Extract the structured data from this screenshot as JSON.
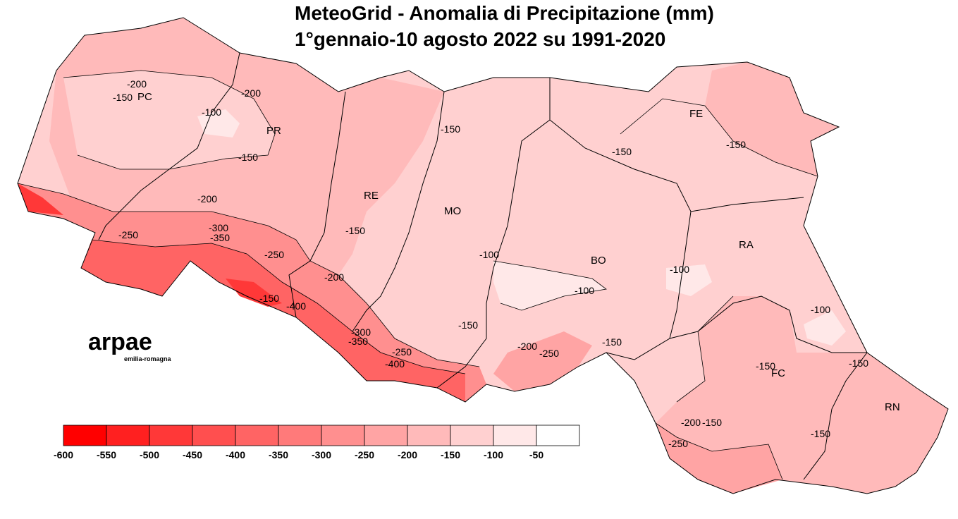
{
  "title": [
    "MeteoGrid - Anomalia di Precipitazione (mm)",
    "1°gennaio-10 agosto 2022 su 1991-2020"
  ],
  "provinces": [
    "PC",
    "PR",
    "RE",
    "MO",
    "BO",
    "FE",
    "RA",
    "FC",
    "RN"
  ],
  "contour_labels": [
    "-200",
    "-150",
    "-100",
    "-200",
    "-150",
    "-200",
    "-250",
    "-300",
    "-350",
    "-250",
    "-150",
    "-400",
    "-200",
    "-150",
    "-150",
    "-150",
    "-150",
    "-100",
    "-100",
    "-100",
    "-100",
    "-150",
    "-200",
    "-250",
    "-300",
    "-350",
    "-250",
    "-400",
    "-150",
    "-150",
    "-150",
    "-150",
    "-200",
    "-150",
    "-250"
  ],
  "logo": {
    "name": "arpae",
    "subtitle": "emilia-romagna"
  },
  "legend": {
    "ticks": [
      -600,
      -550,
      -500,
      -450,
      -400,
      -350,
      -300,
      -250,
      -200,
      -150,
      -100,
      -50
    ],
    "colors": [
      "#ff0000",
      "#ff2020",
      "#ff3838",
      "#ff4f4f",
      "#ff6464",
      "#ff7a7a",
      "#ff8f8f",
      "#ffa4a4",
      "#ffbaba",
      "#ffd0d0",
      "#ffe8e8",
      "#ffffff"
    ]
  }
}
